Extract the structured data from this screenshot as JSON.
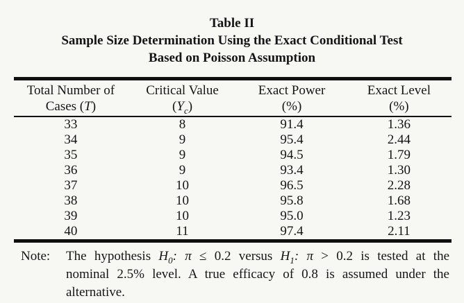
{
  "page": {
    "background_color": "#f7f7f4",
    "text_color": "#151515"
  },
  "title": {
    "line1": "Table II",
    "line2": "Sample Size Determination Using the Exact Conditional Test",
    "line3": "Based on Poisson Assumption"
  },
  "table": {
    "columns": [
      {
        "label_line1": "Total Number of",
        "label_line2_html": "Cases (<i>T</i>)"
      },
      {
        "label_line1": "Critical Value",
        "label_line2_html": "(<i>Y<sub>c</sub></i>)"
      },
      {
        "label_line1": "Exact Power",
        "label_line2_html": "(%)"
      },
      {
        "label_line1": "Exact Level",
        "label_line2_html": "(%)"
      }
    ],
    "rows": [
      [
        "33",
        "8",
        "91.4",
        "1.36"
      ],
      [
        "34",
        "9",
        "95.4",
        "2.44"
      ],
      [
        "35",
        "9",
        "94.5",
        "1.79"
      ],
      [
        "36",
        "9",
        "93.4",
        "1.30"
      ],
      [
        "37",
        "10",
        "96.5",
        "2.28"
      ],
      [
        "38",
        "10",
        "95.8",
        "1.68"
      ],
      [
        "39",
        "10",
        "95.0",
        "1.23"
      ],
      [
        "40",
        "11",
        "97.4",
        "2.11"
      ]
    ]
  },
  "note": {
    "label": "Note:",
    "lines_html": [
      "The hypothesis <i>H<sub>0</sub>:</i> <i>π</i> ≤ 0.2 versus <i>H<sub>1</sub>:</i> <i>π</i> &gt; 0.2 is tested at the",
      "nominal 2.5% level.  A true efficacy of 0.8 is assumed under the",
      "alternative."
    ]
  }
}
